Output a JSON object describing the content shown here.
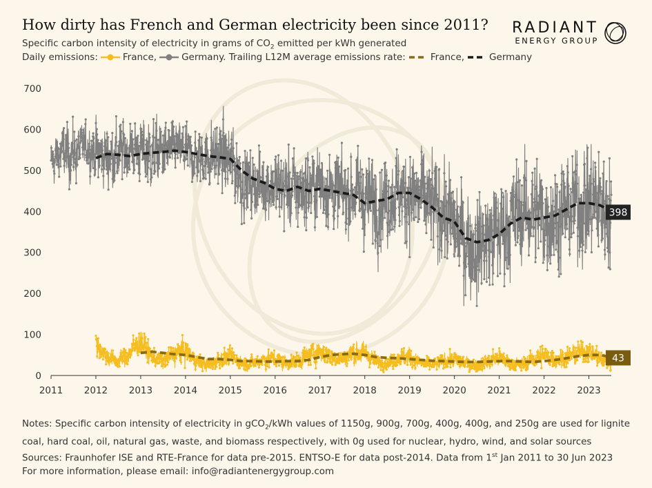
{
  "title": "How dirty has French and German electricity been since 2011?",
  "subtitle_pre": "Specific carbon intensity of electricity in grams of CO",
  "subtitle_sub": "2",
  "subtitle_post": " emitted per kWh generated",
  "legend": {
    "prefix": "Daily emissions:",
    "france_daily": "France,",
    "germany_daily": "Germany. Trailing L12M average emissions rate:",
    "france_avg": "France,",
    "germany_avg": "Germany"
  },
  "brand": {
    "name": "RADIANT",
    "tagline": "ENERGY GROUP"
  },
  "notes": {
    "line1_pre": "Notes: Specific carbon intensity of electricity in gCO",
    "line1_sub": "2",
    "line1_post": "/kWh values of 1150g, 900g, 700g, 400g, 400g, and 250g are used for lignite",
    "line2": "coal, hard coal, oil, natural gas, waste, and biomass respectively, with 0g used for nuclear, hydro, wind, and solar sources",
    "line3_pre": "Sources: Fraunhofer ISE and RTE-France for data pre-2015. ENTSO-E for data post-2014. Data from 1",
    "line3_sup": "st",
    "line3_post": " Jan 2011 to 30 Jun 2023",
    "line4": "For more information, please email: info@radiantenergygroup.com"
  },
  "colors": {
    "france": "#f5bd1f",
    "germany": "#808080",
    "france_avg": "#8a6a12",
    "germany_avg": "#1a1a1a",
    "germany_label_bg": "#222222",
    "france_label_bg": "#7a5c10"
  },
  "chart_data": {
    "type": "line",
    "title": "How dirty has French and German electricity been since 2011?",
    "xlabel": "",
    "ylabel": "",
    "xlim": [
      2011,
      2023.5
    ],
    "ylim": [
      0,
      700
    ],
    "x_ticks": [
      "2011",
      "2012",
      "2013",
      "2014",
      "2015",
      "2016",
      "2017",
      "2018",
      "2019",
      "2020",
      "2021",
      "2022",
      "2023"
    ],
    "y_ticks": [
      "0",
      "100",
      "200",
      "300",
      "400",
      "500",
      "600",
      "700"
    ],
    "end_labels": {
      "germany": "398",
      "france": "43"
    },
    "series": [
      {
        "name": "Germany daily",
        "x": [
          2011.0,
          2011.25,
          2011.5,
          2011.75,
          2012.0,
          2012.25,
          2012.5,
          2012.75,
          2013.0,
          2013.25,
          2013.5,
          2013.75,
          2014.0,
          2014.25,
          2014.5,
          2014.75,
          2015.0,
          2015.25,
          2015.5,
          2015.75,
          2016.0,
          2016.25,
          2016.5,
          2016.75,
          2017.0,
          2017.25,
          2017.5,
          2017.75,
          2018.0,
          2018.25,
          2018.5,
          2018.75,
          2019.0,
          2019.25,
          2019.5,
          2019.75,
          2020.0,
          2020.25,
          2020.5,
          2020.75,
          2021.0,
          2021.25,
          2021.5,
          2021.75,
          2022.0,
          2022.25,
          2022.5,
          2022.75,
          2023.0,
          2023.25,
          2023.5
        ],
        "mean": [
          520,
          545,
          540,
          560,
          545,
          535,
          540,
          550,
          550,
          540,
          545,
          555,
          545,
          530,
          535,
          540,
          520,
          480,
          460,
          470,
          460,
          455,
          450,
          460,
          470,
          455,
          440,
          450,
          430,
          420,
          425,
          445,
          440,
          430,
          410,
          400,
          360,
          330,
          310,
          335,
          350,
          380,
          395,
          400,
          390,
          385,
          400,
          415,
          420,
          420,
          390
        ],
        "range": [
          90,
          100,
          110,
          80,
          110,
          120,
          130,
          100,
          110,
          130,
          120,
          90,
          100,
          110,
          120,
          130,
          140,
          140,
          120,
          130,
          140,
          150,
          150,
          150,
          150,
          150,
          150,
          160,
          160,
          170,
          160,
          160,
          180,
          180,
          180,
          180,
          200,
          190,
          190,
          200,
          200,
          200,
          200,
          200,
          200,
          210,
          210,
          210,
          220,
          220,
          220
        ]
      },
      {
        "name": "Germany L12M average",
        "x": [
          2012.0,
          2012.25,
          2012.5,
          2012.75,
          2013.0,
          2013.25,
          2013.5,
          2013.75,
          2014.0,
          2014.25,
          2014.5,
          2014.75,
          2015.0,
          2015.25,
          2015.5,
          2015.75,
          2016.0,
          2016.25,
          2016.5,
          2016.75,
          2017.0,
          2017.25,
          2017.5,
          2017.75,
          2018.0,
          2018.25,
          2018.5,
          2018.75,
          2019.0,
          2019.25,
          2019.5,
          2019.75,
          2020.0,
          2020.25,
          2020.5,
          2020.75,
          2021.0,
          2021.25,
          2021.5,
          2021.75,
          2022.0,
          2022.25,
          2022.5,
          2022.75,
          2023.0,
          2023.25,
          2023.5
        ],
        "values": [
          530,
          540,
          538,
          535,
          540,
          543,
          545,
          548,
          545,
          540,
          535,
          532,
          528,
          500,
          480,
          470,
          455,
          450,
          460,
          450,
          455,
          450,
          445,
          440,
          420,
          425,
          430,
          445,
          445,
          430,
          410,
          385,
          375,
          335,
          325,
          330,
          345,
          370,
          385,
          380,
          385,
          390,
          405,
          420,
          420,
          415,
          400
        ]
      },
      {
        "name": "France daily",
        "x": [
          2012.0,
          2012.25,
          2012.5,
          2012.75,
          2013.0,
          2013.25,
          2013.5,
          2013.75,
          2014.0,
          2014.25,
          2014.5,
          2014.75,
          2015.0,
          2015.25,
          2015.5,
          2015.75,
          2016.0,
          2016.25,
          2016.5,
          2016.75,
          2017.0,
          2017.25,
          2017.5,
          2017.75,
          2018.0,
          2018.25,
          2018.5,
          2018.75,
          2019.0,
          2019.25,
          2019.5,
          2019.75,
          2020.0,
          2020.25,
          2020.5,
          2020.75,
          2021.0,
          2021.25,
          2021.5,
          2021.75,
          2022.0,
          2022.25,
          2022.5,
          2022.75,
          2023.0,
          2023.25,
          2023.5
        ],
        "mean": [
          80,
          45,
          35,
          55,
          85,
          45,
          35,
          55,
          60,
          35,
          25,
          40,
          45,
          30,
          30,
          40,
          40,
          30,
          35,
          50,
          60,
          45,
          40,
          55,
          55,
          35,
          30,
          45,
          45,
          30,
          25,
          35,
          40,
          30,
          25,
          35,
          45,
          30,
          25,
          40,
          50,
          40,
          45,
          55,
          60,
          40,
          30
        ],
        "range": [
          50,
          35,
          30,
          45,
          50,
          35,
          30,
          45,
          45,
          30,
          25,
          35,
          35,
          25,
          25,
          35,
          35,
          25,
          30,
          40,
          45,
          35,
          30,
          40,
          40,
          30,
          25,
          35,
          35,
          25,
          25,
          30,
          35,
          25,
          25,
          30,
          35,
          25,
          25,
          35,
          40,
          35,
          35,
          40,
          40,
          35,
          30
        ]
      },
      {
        "name": "France L12M average",
        "x": [
          2013.0,
          2013.25,
          2013.5,
          2013.75,
          2014.0,
          2014.25,
          2014.5,
          2014.75,
          2015.0,
          2015.25,
          2015.5,
          2015.75,
          2016.0,
          2016.25,
          2016.5,
          2016.75,
          2017.0,
          2017.25,
          2017.5,
          2017.75,
          2018.0,
          2018.25,
          2018.5,
          2018.75,
          2019.0,
          2019.25,
          2019.5,
          2019.75,
          2020.0,
          2020.25,
          2020.5,
          2020.75,
          2021.0,
          2021.25,
          2021.5,
          2021.75,
          2022.0,
          2022.25,
          2022.5,
          2022.75,
          2023.0,
          2023.25,
          2023.5
        ],
        "values": [
          55,
          58,
          55,
          52,
          50,
          45,
          40,
          40,
          38,
          35,
          35,
          34,
          34,
          35,
          35,
          38,
          45,
          50,
          52,
          53,
          50,
          45,
          43,
          42,
          40,
          38,
          36,
          35,
          34,
          33,
          33,
          34,
          35,
          35,
          34,
          33,
          35,
          38,
          42,
          47,
          50,
          50,
          45
        ]
      }
    ]
  }
}
